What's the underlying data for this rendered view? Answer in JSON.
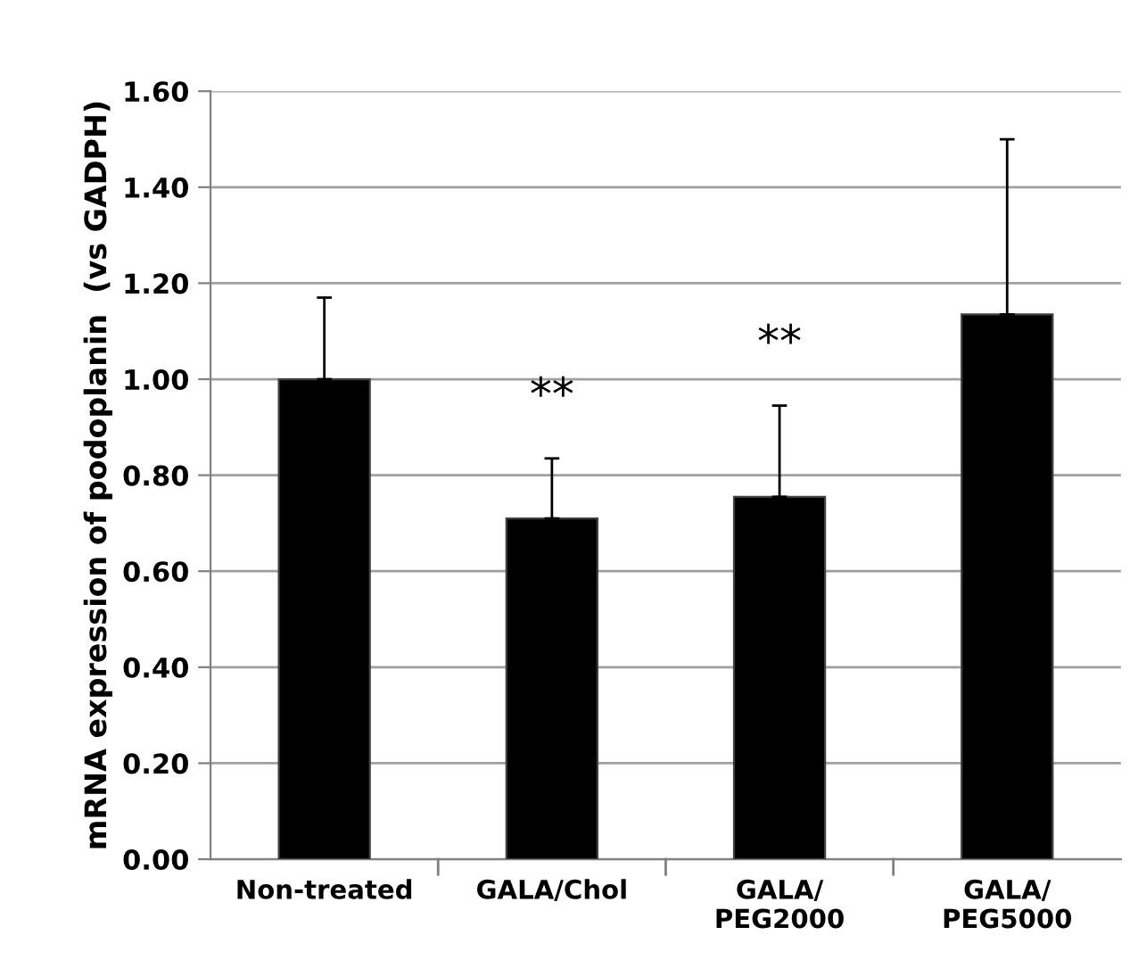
{
  "chart_data": {
    "type": "bar",
    "ylabel": "mRNA expression of podoplanin  (vs GADPH)",
    "categories": [
      "Non-treated",
      "GALA/Chol",
      "GALA/\nPEG2000",
      "GALA/\nPEG5000"
    ],
    "series": [
      {
        "color": "#000000",
        "values": [
          1.0,
          0.71,
          0.755,
          1.135
        ],
        "errors": [
          [
            1.0,
            1.17
          ],
          [
            0.71,
            0.835
          ],
          [
            0.755,
            0.945
          ],
          [
            1.135,
            1.5
          ]
        ]
      }
    ],
    "ylim": [
      0,
      1.6
    ],
    "yticks": [
      {
        "value": 0,
        "label": "0.00"
      },
      {
        "value": 0.2,
        "label": "0.20"
      },
      {
        "value": 0.4,
        "label": "0.40"
      },
      {
        "value": 0.6,
        "label": "0.60"
      },
      {
        "value": 0.8,
        "label": "0.80"
      },
      {
        "value": 1.0,
        "label": "1.00"
      },
      {
        "value": 1.2,
        "label": "1.20"
      },
      {
        "value": 1.4,
        "label": "1.40"
      },
      {
        "value": 1.6,
        "label": "1.60"
      }
    ],
    "grid": "y",
    "annotations": [
      {
        "text": "**",
        "x": "GALA/Chol",
        "y": 0.835
      },
      {
        "text": "**",
        "x": "GALA/\nPEG2000",
        "y": 0.945
      }
    ]
  }
}
